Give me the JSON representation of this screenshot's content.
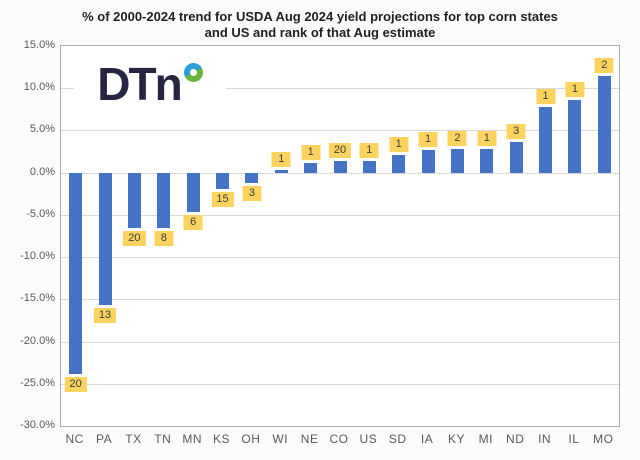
{
  "title_line1": "% of 2000-2024 trend for USDA Aug 2024 yield projections for top corn states",
  "title_line2": "and US and rank of that Aug estimate",
  "logo": {
    "text": "DTn",
    "donut_icon": "dtn-donut"
  },
  "colors": {
    "bar": "#4472c4",
    "badge_bg": "#fcd35e",
    "badge_text": "#3b3b3b",
    "gridline": "#d9d9d9",
    "plot_border": "#ababab",
    "axis_text": "#595959",
    "title_text": "#1f1f1f",
    "logo_text": "#262642",
    "logo_ring_blue": "#2e9fd4",
    "logo_ring_green": "#68b43f"
  },
  "chart_data": {
    "type": "bar",
    "title": "% of 2000-2024 trend for USDA Aug 2024 yield projections for top corn states and US and rank of that Aug estimate",
    "categories": [
      "NC",
      "PA",
      "TX",
      "TN",
      "MN",
      "KS",
      "OH",
      "WI",
      "NE",
      "CO",
      "US",
      "SD",
      "IA",
      "KY",
      "MI",
      "ND",
      "IN",
      "IL",
      "MO"
    ],
    "values": [
      -23.9,
      -15.7,
      -6.6,
      -6.5,
      -4.6,
      -1.9,
      -1.2,
      0.3,
      1.2,
      1.4,
      1.4,
      2.1,
      2.7,
      2.8,
      2.8,
      3.6,
      7.8,
      8.6,
      11.4
    ],
    "ranks": [
      20,
      13,
      20,
      8,
      6,
      15,
      3,
      1,
      1,
      20,
      1,
      1,
      1,
      2,
      1,
      3,
      1,
      1,
      2
    ],
    "xlabel": "",
    "ylabel": "",
    "ylim": [
      -30,
      15
    ],
    "ytick_step": 5,
    "y_tick_labels": [
      "15.0%",
      "10.0%",
      "5.0%",
      "0.0%",
      "-5.0%",
      "-10.0%",
      "-15.0%",
      "-20.0%",
      "-25.0%",
      "-30.0%"
    ],
    "grid": true,
    "legend": "none",
    "bar_value_labels": "rank of Aug estimate shown in yellow badges"
  }
}
